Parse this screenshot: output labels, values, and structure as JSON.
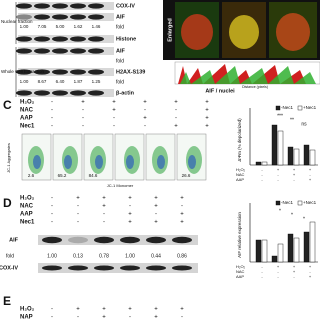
{
  "panel_a": {
    "blot": {
      "labels": [
        "COX-IV",
        "AIF",
        "fold",
        "Histone",
        "AIF",
        "fold",
        "H2AX-S139",
        "fold",
        "β-actin"
      ],
      "sections": [
        "Nuclear fraction",
        "Whole Cell Extraction"
      ],
      "fold_rows": [
        [
          "1.00",
          "7.05",
          "5.00",
          "1.62",
          "1.46"
        ],
        [
          "1.00",
          "8.67",
          "6.40",
          "1.87",
          "1.25"
        ]
      ]
    },
    "micrograph": {
      "side_label": "Enlarged",
      "caption": "AIF / nuclei",
      "axis_label": "Distance (pixels)"
    }
  },
  "panel_c": {
    "letter": "C",
    "treatments": [
      {
        "label": "H₂O₂",
        "signs": [
          "-",
          "+",
          "+",
          "+",
          "+",
          "+"
        ]
      },
      {
        "label": "NAC",
        "signs": [
          "-",
          "-",
          "+",
          "-",
          "-",
          "+"
        ]
      },
      {
        "label": "AAP",
        "signs": [
          "-",
          "-",
          "-",
          "+",
          "-",
          "+"
        ]
      },
      {
        "label": "Nec1",
        "signs": [
          "-",
          "-",
          "-",
          "-",
          "+",
          "+"
        ]
      }
    ],
    "y_axis_label": "JC-1 Aggregates",
    "x_axis_label": "JC-1 Monomer",
    "plot_values": [
      "2.6",
      "65.2",
      "84.6",
      "26.6"
    ],
    "chart": {
      "y_label": "ΔΨm (% depolarized)",
      "legend": [
        "-Nec1",
        "+Nec1"
      ],
      "annotations": [
        "***",
        "**",
        "ns"
      ],
      "conditions": [
        {
          "label": "H₂O₂",
          "signs": [
            "-",
            "+",
            "+",
            "+"
          ]
        },
        {
          "label": "NAC",
          "signs": [
            "-",
            "-",
            "+",
            "-"
          ]
        },
        {
          "label": "AAP",
          "signs": [
            "-",
            "-",
            "-",
            "+"
          ]
        }
      ]
    }
  },
  "panel_d": {
    "letter": "D",
    "treatments": [
      {
        "label": "H₂O₂",
        "signs": [
          "-",
          "+",
          "+",
          "+",
          "+",
          "+"
        ]
      },
      {
        "label": "NAC",
        "signs": [
          "-",
          "-",
          "+",
          "-",
          "+",
          "-"
        ]
      },
      {
        "label": "AAP",
        "signs": [
          "-",
          "-",
          "-",
          "+",
          "-",
          "+"
        ]
      },
      {
        "label": "Nec1",
        "signs": [
          "-",
          "-",
          "-",
          "+",
          "+",
          "+"
        ]
      }
    ],
    "blot_labels": [
      "AIF",
      "fold",
      "COX-IV"
    ],
    "fold_values": [
      "1.00",
      "0.13",
      "0.78",
      "1.00",
      "0.44",
      "0.86"
    ],
    "chart": {
      "y_label": "AIF relative expression",
      "legend": [
        "-Nec1",
        "+Nec1"
      ],
      "annotations": [
        "*",
        "*",
        "*"
      ],
      "conditions": [
        {
          "label": "H₂O₂",
          "signs": [
            "-",
            "+",
            "+",
            "+"
          ]
        },
        {
          "label": "NAC",
          "signs": [
            "-",
            "-",
            "+",
            "-"
          ]
        },
        {
          "label": "AAP",
          "signs": [
            "-",
            "-",
            "-",
            "+"
          ]
        }
      ]
    }
  },
  "panel_e": {
    "letter": "E",
    "treatments": [
      {
        "label": "H₂O₂",
        "signs": [
          "-",
          "+",
          "+",
          "+",
          "+",
          "+"
        ]
      },
      {
        "label": "NAP",
        "signs": [
          "-",
          "-",
          "+",
          "-",
          "+",
          "-"
        ]
      }
    ]
  }
}
